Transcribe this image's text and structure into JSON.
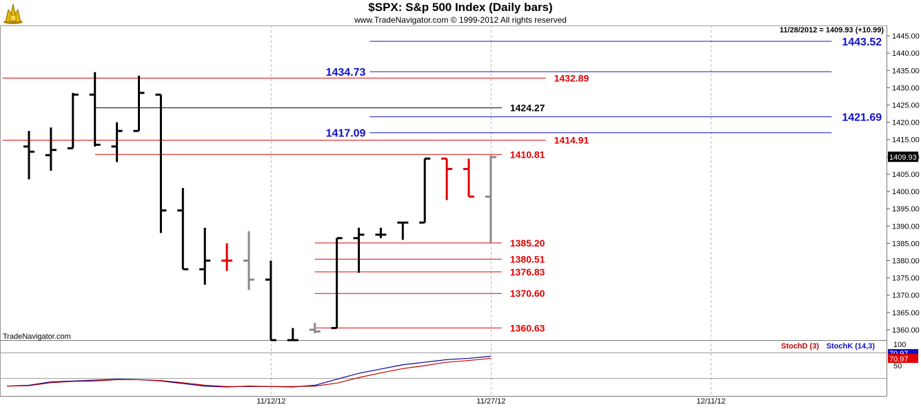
{
  "header": {
    "title": "$SPX:  S&p 500 Index  (Daily bars)",
    "subtitle": "www.TradeNavigator.com © 1999-2012 All rights reserved",
    "quote": "11/28/2012 = 1409.93 (+10.99)",
    "watermark": "TradeNavigator.com"
  },
  "colors": {
    "blue_level": "#1010c8",
    "red_level": "#e00000",
    "black_level": "#000000",
    "up_bar": "#000000",
    "down_bar": "#e00000",
    "last_bar": "#888888",
    "stoch_d": "#c00000",
    "stoch_k": "#000090"
  },
  "chart_data": [
    {
      "type": "ohlc",
      "title": "$SPX:  S&p 500 Index  (Daily bars)",
      "ylim": [
        1357,
        1448
      ],
      "y_ticks": [
        1360.0,
        1365.0,
        1370.0,
        1375.0,
        1380.0,
        1385.0,
        1390.0,
        1395.0,
        1400.0,
        1405.0,
        1410.0,
        1415.0,
        1420.0,
        1425.0,
        1430.0,
        1435.0,
        1440.0,
        1445.0
      ],
      "x_tick_labels": [
        {
          "index": 11,
          "label": "11/12/12"
        },
        {
          "index": 21,
          "label": "11/27/12"
        },
        {
          "index": 31,
          "label": "12/11/12"
        }
      ],
      "last_price_label": "1409.93",
      "bars": [
        {
          "o": 1413.0,
          "h": 1417.5,
          "l": 1403.5,
          "c": 1411.5,
          "color": "black"
        },
        {
          "o": 1410.5,
          "h": 1418.5,
          "l": 1406.0,
          "c": 1412.0,
          "color": "black"
        },
        {
          "o": 1412.5,
          "h": 1428.5,
          "l": 1412.5,
          "c": 1428.0,
          "color": "black"
        },
        {
          "o": 1428.0,
          "h": 1434.5,
          "l": 1413.0,
          "c": 1413.5,
          "color": "black"
        },
        {
          "o": 1413.0,
          "h": 1420.0,
          "l": 1408.5,
          "c": 1417.5,
          "color": "black"
        },
        {
          "o": 1417.5,
          "h": 1433.5,
          "l": 1417.5,
          "c": 1428.5,
          "color": "black"
        },
        {
          "o": 1428.0,
          "h": 1428.0,
          "l": 1388.0,
          "c": 1394.5,
          "color": "black"
        },
        {
          "o": 1394.5,
          "h": 1401.0,
          "l": 1377.5,
          "c": 1377.5,
          "color": "black"
        },
        {
          "o": 1377.5,
          "h": 1389.5,
          "l": 1373.0,
          "c": 1380.0,
          "color": "black"
        },
        {
          "o": 1380.0,
          "h": 1385.0,
          "l": 1377.0,
          "c": 1380.0,
          "color": "red"
        },
        {
          "o": 1380.0,
          "h": 1388.5,
          "l": 1371.5,
          "c": 1374.5,
          "color": "gray"
        },
        {
          "o": 1374.5,
          "h": 1380.0,
          "l": 1357.0,
          "c": 1357.0,
          "color": "black"
        },
        {
          "o": 1357.0,
          "h": 1360.5,
          "l": 1357.0,
          "c": 1357.0,
          "color": "black"
        },
        {
          "o": 1360.0,
          "h": 1362.0,
          "l": 1359.0,
          "c": 1359.5,
          "color": "gray"
        },
        {
          "o": 1360.5,
          "h": 1386.5,
          "l": 1360.5,
          "c": 1386.5,
          "color": "black"
        },
        {
          "o": 1386.5,
          "h": 1389.5,
          "l": 1376.5,
          "c": 1387.5,
          "color": "black"
        },
        {
          "o": 1387.5,
          "h": 1389.5,
          "l": 1386.5,
          "c": 1387.5,
          "color": "black"
        },
        {
          "o": 1391.0,
          "h": 1391.0,
          "l": 1386.0,
          "c": 1391.0,
          "color": "black"
        },
        {
          "o": 1391.0,
          "h": 1409.5,
          "l": 1391.0,
          "c": 1409.5,
          "color": "black"
        },
        {
          "o": 1409.5,
          "h": 1409.5,
          "l": 1397.5,
          "c": 1406.5,
          "color": "red"
        },
        {
          "o": 1406.5,
          "h": 1409.5,
          "l": 1398.5,
          "c": 1398.5,
          "color": "red"
        },
        {
          "o": 1398.5,
          "h": 1410.5,
          "l": 1385.0,
          "c": 1409.93,
          "color": "gray"
        }
      ],
      "levels": [
        {
          "value": 1443.52,
          "label": "1443.52",
          "color": "blue",
          "from": 15.5,
          "to": 36.5,
          "label_pos": "right"
        },
        {
          "value": 1434.73,
          "label": "1434.73",
          "color": "blue",
          "from": 15.5,
          "to": 36.5,
          "label_pos": "left"
        },
        {
          "value": 1432.89,
          "label": "1432.89",
          "color": "red",
          "from": -1.2,
          "to": 23.5,
          "label_pos": "end"
        },
        {
          "value": 1424.27,
          "label": "1424.27",
          "color": "black",
          "from": 3.0,
          "to": 21.5,
          "label_pos": "end"
        },
        {
          "value": 1421.69,
          "label": "1421.69",
          "color": "blue",
          "from": 15.5,
          "to": 36.5,
          "label_pos": "right"
        },
        {
          "value": 1417.09,
          "label": "1417.09",
          "color": "blue",
          "from": 15.5,
          "to": 36.5,
          "label_pos": "left"
        },
        {
          "value": 1414.91,
          "label": "1414.91",
          "color": "red",
          "from": -1.2,
          "to": 23.5,
          "label_pos": "end"
        },
        {
          "value": 1410.81,
          "label": "1410.81",
          "color": "red",
          "from": 3.0,
          "to": 21.5,
          "label_pos": "end"
        },
        {
          "value": 1385.2,
          "label": "1385.20",
          "color": "red",
          "from": 13.0,
          "to": 21.5,
          "label_pos": "end"
        },
        {
          "value": 1380.51,
          "label": "1380.51",
          "color": "red",
          "from": 13.0,
          "to": 21.5,
          "label_pos": "end"
        },
        {
          "value": 1376.83,
          "label": "1376.83",
          "color": "red",
          "from": 13.0,
          "to": 21.5,
          "label_pos": "end"
        },
        {
          "value": 1370.6,
          "label": "1370.60",
          "color": "red",
          "from": 13.0,
          "to": 21.5,
          "label_pos": "end"
        },
        {
          "value": 1360.63,
          "label": "1360.63",
          "color": "red",
          "from": 13.0,
          "to": 21.5,
          "label_pos": "end"
        }
      ]
    },
    {
      "type": "line",
      "title": "StochD (3)  StochK (14,3)",
      "ylim": [
        0,
        100
      ],
      "y_ticks": [
        50,
        100
      ],
      "series_labels": [
        "StochD (3)",
        "StochK (14,3)"
      ],
      "value_labels": [
        "70.97",
        "70.97"
      ],
      "reference_lines": [
        80,
        20
      ],
      "x": [
        -1,
        0,
        1,
        2,
        3,
        4,
        5,
        6,
        7,
        8,
        9,
        10,
        11,
        12,
        13,
        14,
        15,
        16,
        17,
        18,
        19,
        20,
        21
      ],
      "series": [
        {
          "name": "StochK (14,3)",
          "color": "blue",
          "values": [
            2,
            4,
            12,
            14,
            16,
            18,
            17,
            14,
            8,
            2,
            0,
            2,
            1,
            0,
            4,
            18,
            32,
            42,
            52,
            58,
            64,
            67,
            72
          ]
        },
        {
          "name": "StochD (3)",
          "color": "red",
          "values": [
            2,
            3,
            10,
            13,
            14,
            17,
            17,
            15,
            10,
            4,
            1,
            1,
            1,
            1,
            2,
            9,
            22,
            33,
            43,
            50,
            58,
            62,
            67
          ]
        }
      ]
    }
  ]
}
